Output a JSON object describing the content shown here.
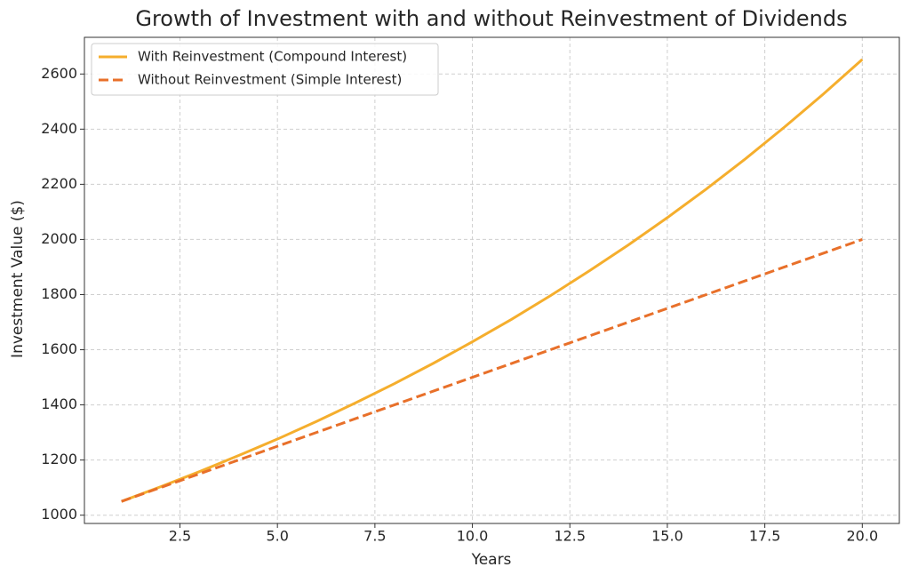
{
  "chart_data": {
    "type": "line",
    "title": "Growth of Investment with and without Reinvestment of Dividends",
    "xlabel": "Years",
    "ylabel": "Investment Value ($)",
    "x": [
      1,
      2,
      3,
      4,
      5,
      6,
      7,
      8,
      9,
      10,
      11,
      12,
      13,
      14,
      15,
      16,
      17,
      18,
      19,
      20
    ],
    "series": [
      {
        "name": "With Reinvestment (Compound Interest)",
        "color": "#f5ae2d",
        "linestyle": "solid",
        "values": [
          1050,
          1103,
          1158,
          1216,
          1276,
          1340,
          1407,
          1477,
          1551,
          1629,
          1710,
          1796,
          1886,
          1980,
          2079,
          2183,
          2292,
          2407,
          2527,
          2653
        ]
      },
      {
        "name": "Without Reinvestment (Simple Interest)",
        "color": "#e8702a",
        "linestyle": "dashed",
        "values": [
          1050,
          1100,
          1150,
          1200,
          1250,
          1300,
          1350,
          1400,
          1450,
          1500,
          1550,
          1600,
          1650,
          1700,
          1750,
          1800,
          1850,
          1900,
          1950,
          2000
        ]
      }
    ],
    "xlim": [
      0.05,
      20.95
    ],
    "ylim": [
      970,
      2733
    ],
    "xticks": [
      2.5,
      {
        "value": 5,
        "label": "5.0"
      },
      7.5,
      {
        "value": 10,
        "label": "10.0"
      },
      12.5,
      {
        "value": 15,
        "label": "15.0"
      },
      17.5,
      {
        "value": 20,
        "label": "20.0"
      }
    ],
    "yticks": [
      1000,
      1200,
      1400,
      1600,
      1800,
      2000,
      2200,
      2400,
      2600
    ],
    "grid": true,
    "legend": "upper left"
  }
}
